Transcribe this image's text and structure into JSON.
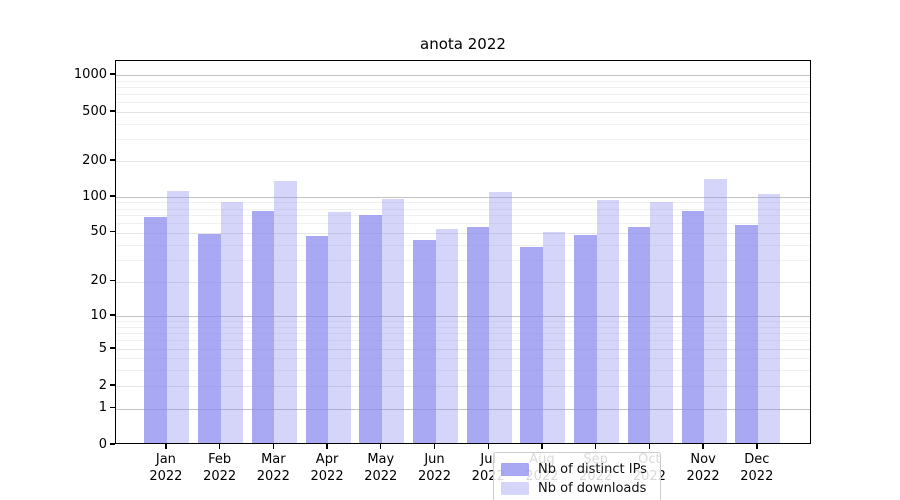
{
  "chart_data": {
    "type": "bar",
    "title": "anota 2022",
    "categories": [
      "Jan",
      "Feb",
      "Mar",
      "Apr",
      "May",
      "Jun",
      "Jul",
      "Aug",
      "Sep",
      "Oct",
      "Nov",
      "Dec"
    ],
    "year_label": "2022",
    "series": [
      {
        "name": "Nb of distinct IPs",
        "color": "#8888ee",
        "alpha": 0.72,
        "values": [
          65,
          47,
          73,
          45,
          68,
          42,
          54,
          37,
          46,
          54,
          74,
          56
        ]
      },
      {
        "name": "Nb of downloads",
        "color": "#8888ee",
        "alpha": 0.35,
        "values": [
          109,
          87,
          130,
          72,
          93,
          52,
          105,
          49,
          91,
          87,
          136,
          101
        ]
      }
    ],
    "xlabel": "",
    "ylabel": "",
    "yticks": [
      0,
      1,
      2,
      5,
      10,
      20,
      50,
      100,
      200,
      500,
      1000
    ],
    "yscale": "symlog",
    "ylim": [
      0,
      1300
    ],
    "grid": true,
    "legend_position": "lower center"
  }
}
